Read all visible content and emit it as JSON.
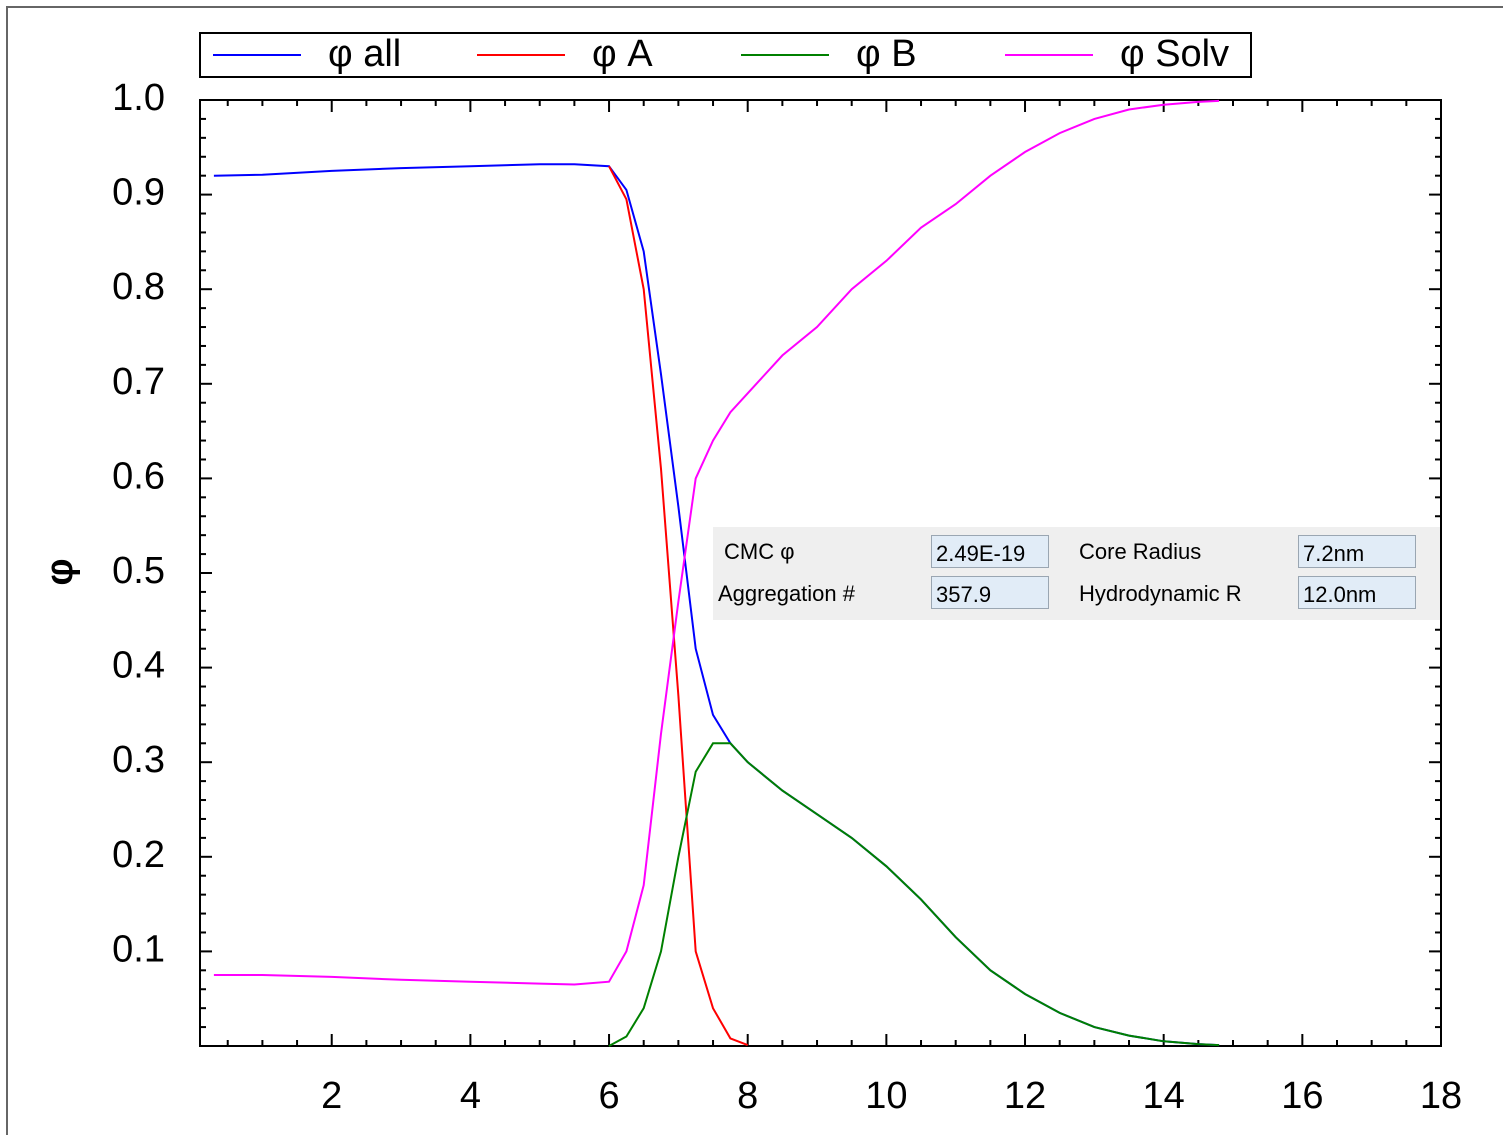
{
  "chart_data": {
    "type": "line",
    "ylabel": "φ",
    "x": [
      0.3,
      1,
      2,
      3,
      4,
      5,
      5.5,
      6,
      6.25,
      6.5,
      6.75,
      7,
      7.25,
      7.5,
      7.75,
      8,
      8.5,
      9,
      9.5,
      10,
      10.5,
      11,
      11.5,
      12,
      12.5,
      13,
      13.5,
      14,
      14.5,
      14.8
    ],
    "series": [
      {
        "name": "φ all",
        "color": "#0000ff",
        "values": [
          0.92,
          0.921,
          0.925,
          0.928,
          0.93,
          0.932,
          0.932,
          0.93,
          0.905,
          0.84,
          0.71,
          0.57,
          0.42,
          0.35,
          0.32,
          0.3,
          0.27,
          0.245,
          0.22,
          0.19,
          0.155,
          0.115,
          0.08,
          0.055,
          0.035,
          0.02,
          0.011,
          0.005,
          0.002,
          0.001
        ]
      },
      {
        "name": "φ A",
        "color": "#ff0000",
        "values": [
          null,
          null,
          null,
          null,
          null,
          null,
          null,
          0.93,
          0.895,
          0.8,
          0.61,
          0.37,
          0.1,
          0.04,
          0.008,
          0.001,
          null,
          null,
          null,
          null,
          null,
          null,
          null,
          null,
          null,
          null,
          null,
          null,
          null,
          null
        ]
      },
      {
        "name": "φ B",
        "color": "#008000",
        "values": [
          null,
          null,
          null,
          null,
          null,
          null,
          null,
          0.0,
          0.01,
          0.04,
          0.1,
          0.2,
          0.29,
          0.32,
          0.32,
          0.3,
          0.27,
          0.245,
          0.22,
          0.19,
          0.155,
          0.115,
          0.08,
          0.055,
          0.035,
          0.02,
          0.011,
          0.005,
          0.002,
          0.001
        ]
      },
      {
        "name": "φ Solv",
        "color": "#ff00ff",
        "values": [
          0.075,
          0.075,
          0.073,
          0.07,
          0.068,
          0.066,
          0.065,
          0.068,
          0.1,
          0.17,
          0.33,
          0.47,
          0.6,
          0.64,
          0.67,
          0.69,
          0.73,
          0.76,
          0.8,
          0.83,
          0.865,
          0.89,
          0.92,
          0.945,
          0.965,
          0.98,
          0.99,
          0.995,
          0.998,
          0.999
        ]
      }
    ],
    "xlim": [
      0.1,
      18
    ],
    "xticks": [
      2,
      4,
      6,
      8,
      10,
      12,
      14,
      16,
      18
    ],
    "ylim": [
      0,
      1
    ],
    "yticks": [
      0.1,
      0.2,
      0.3,
      0.4,
      0.5,
      0.6,
      0.7,
      0.8,
      0.9,
      {
        "value": 1,
        "label": "1.0"
      }
    ],
    "grid": false,
    "legend": "top"
  },
  "panel": {
    "items": [
      {
        "label": "CMC φ",
        "value": "2.49E-19"
      },
      {
        "label": "Core Radius",
        "value": "7.2nm"
      },
      {
        "label": "Aggregation #",
        "value": "357.9"
      },
      {
        "label": "Hydrodynamic R",
        "value": "12.0nm"
      }
    ]
  }
}
